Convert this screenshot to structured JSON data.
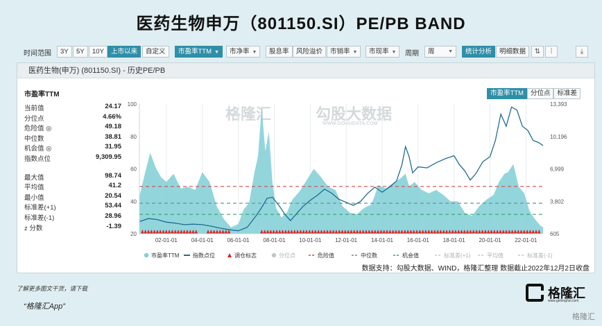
{
  "title": "医药生物申万（801150.SI）PE/PB BAND",
  "toolbar": {
    "range_label": "时间范围",
    "ranges": [
      "3Y",
      "5Y",
      "10Y",
      "上市以来",
      "自定义"
    ],
    "metrics": [
      "市盈率TTM",
      "市净率",
      "股息率",
      "风险溢价",
      "市销率",
      "市现率"
    ],
    "period_label": "周期",
    "period_value": "周",
    "btn_stats": "统计分析",
    "btn_detail": "明细数据"
  },
  "panel_title": "医药生物(申万) (801150.SI) - 历史PE/PB",
  "stats": {
    "header": "市盈率TTM",
    "rows1": [
      {
        "k": "当前值",
        "v": "24.17"
      },
      {
        "k": "分位点",
        "v": "4.66%"
      },
      {
        "k": "危险值 ◎",
        "v": "49.18"
      },
      {
        "k": "中位数",
        "v": "38.81"
      },
      {
        "k": "机会值 ◎",
        "v": "31.95"
      },
      {
        "k": "指数点位",
        "v": "9,309.95"
      }
    ],
    "rows2": [
      {
        "k": "最大值",
        "v": "98.74"
      },
      {
        "k": "平均值",
        "v": "41.2"
      },
      {
        "k": "最小值",
        "v": "20.54"
      },
      {
        "k": "标准差(+1)",
        "v": "53.44"
      },
      {
        "k": "标准差(-1)",
        "v": "28.96"
      },
      {
        "k": "z 分数",
        "v": "-1.39"
      }
    ]
  },
  "tabs": [
    "市盈率TTM",
    "分位点",
    "标准差"
  ],
  "watermarks": {
    "a": "格隆汇",
    "b": "勾股大数据",
    "c": "WWW.GOGUDATA.COM"
  },
  "chart_data": {
    "type": "area",
    "x_ticks": [
      "02-01-01",
      "04-01-01",
      "06-01-01",
      "08-01-01",
      "10-01-01",
      "12-01-01",
      "14-01-01",
      "16-01-01",
      "18-01-01",
      "20-01-01",
      "22-01-01"
    ],
    "x_range": [
      2000.5,
      2022.95
    ],
    "y_left_ticks": [
      "100",
      "80",
      "60",
      "40",
      "20"
    ],
    "y_left_range": [
      20,
      100
    ],
    "y_right_ticks": [
      "13,393",
      "10,196",
      "6,999",
      "3,802",
      "605"
    ],
    "y_right_range": [
      605,
      13393
    ],
    "pe_series": {
      "name": "市盈率TTM",
      "x": [
        2000.5,
        2000.8,
        2001.1,
        2001.4,
        2001.7,
        2002.0,
        2002.4,
        2002.8,
        2003.2,
        2003.6,
        2004.0,
        2004.4,
        2004.8,
        2005.2,
        2005.6,
        2006.0,
        2006.3,
        2006.6,
        2006.9,
        2007.1,
        2007.3,
        2007.5,
        2007.7,
        2007.9,
        2008.1,
        2008.4,
        2008.7,
        2009.0,
        2009.4,
        2009.8,
        2010.2,
        2010.6,
        2011.0,
        2011.4,
        2011.8,
        2012.2,
        2012.6,
        2013.0,
        2013.4,
        2013.8,
        2014.2,
        2014.6,
        2015.0,
        2015.3,
        2015.5,
        2015.8,
        2016.2,
        2016.6,
        2017.0,
        2017.4,
        2017.8,
        2018.2,
        2018.6,
        2019.0,
        2019.4,
        2019.8,
        2020.2,
        2020.5,
        2020.8,
        2021.0,
        2021.3,
        2021.6,
        2021.9,
        2022.2,
        2022.5,
        2022.8,
        2022.95
      ],
      "values": [
        43,
        57,
        70,
        61,
        55,
        52,
        57,
        48,
        49,
        47,
        58,
        52,
        37,
        29,
        24,
        26,
        35,
        39,
        58,
        68,
        98,
        71,
        83,
        52,
        36,
        30,
        33,
        41,
        46,
        53,
        60,
        55,
        49,
        47,
        37,
        33,
        32,
        36,
        38,
        50,
        48,
        51,
        54,
        57,
        49,
        52,
        47,
        45,
        47,
        44,
        40,
        40,
        33,
        31,
        37,
        41,
        44,
        52,
        57,
        58,
        63,
        49,
        45,
        34,
        29,
        25,
        24
      ]
    },
    "index_series": {
      "name": "指数点位",
      "x": [
        2000.5,
        2001.0,
        2001.5,
        2002.0,
        2002.5,
        2003.0,
        2003.5,
        2004.0,
        2004.5,
        2005.0,
        2005.5,
        2006.0,
        2006.5,
        2007.0,
        2007.3,
        2007.6,
        2007.9,
        2008.3,
        2008.6,
        2008.9,
        2009.2,
        2009.6,
        2010.0,
        2010.4,
        2010.8,
        2011.2,
        2011.6,
        2012.0,
        2012.4,
        2012.8,
        2013.2,
        2013.6,
        2014.0,
        2014.4,
        2014.8,
        2015.1,
        2015.3,
        2015.5,
        2015.7,
        2016.0,
        2016.5,
        2017.0,
        2017.5,
        2018.0,
        2018.3,
        2018.6,
        2018.9,
        2019.2,
        2019.6,
        2020.0,
        2020.3,
        2020.6,
        2020.9,
        2021.2,
        2021.5,
        2021.8,
        2022.1,
        2022.4,
        2022.7,
        2022.95
      ],
      "values": [
        1800,
        2100,
        2000,
        1750,
        1650,
        1500,
        1550,
        1500,
        1350,
        1150,
        1000,
        900,
        1250,
        2400,
        3200,
        4100,
        4200,
        3300,
        2500,
        1900,
        2500,
        3300,
        3900,
        4400,
        5000,
        4600,
        4000,
        3700,
        3400,
        3800,
        4600,
        5200,
        4700,
        5200,
        5800,
        7400,
        9200,
        8200,
        6600,
        7200,
        7100,
        7600,
        8000,
        8300,
        7400,
        6800,
        5900,
        6500,
        7700,
        8200,
        9800,
        12400,
        11200,
        13100,
        12800,
        11200,
        10800,
        9800,
        9600,
        9300
      ]
    },
    "danger": 49.18,
    "median": 38.81,
    "opportunity": 31.95,
    "legend": [
      "市盈率TTM",
      "指数点位",
      "调仓标志",
      "分位点",
      "危险值",
      "中位数",
      "机会值",
      "标准差(+1)",
      "平均值",
      "标准差(-1)"
    ],
    "colors": {
      "pe": "#7fcfd6",
      "index": "#1f6b93",
      "danger": "#d24b4b",
      "median": "#6f8e98",
      "opportunity": "#3aa06a",
      "marker": "#e02020"
    }
  },
  "source": "数据支持：勾股大数据、WIND，格隆汇整理 数据截止2022年12月2日收盘",
  "footer": {
    "line1": "了解更多图文干货，请下载",
    "line2": "“格隆汇App”"
  },
  "logo": {
    "name": "格隆汇",
    "sub": "www.gelonghui.com"
  },
  "corner": "格隆汇"
}
